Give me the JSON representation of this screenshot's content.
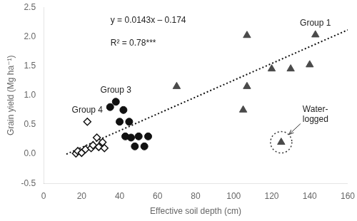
{
  "chart_data": {
    "type": "scatter",
    "xlabel": "Effective soil depth (cm)",
    "ylabel": "Grain yield (Mg ha⁻¹)",
    "xlim": [
      0,
      160
    ],
    "ylim": [
      -0.5,
      2.5
    ],
    "xticks": [
      0,
      20,
      40,
      60,
      80,
      100,
      120,
      140,
      160
    ],
    "yticks": [
      -0.5,
      {
        "value": 0,
        "label": "0.0"
      },
      0.5,
      {
        "value": 1,
        "label": "1.0"
      },
      1.5,
      {
        "value": 2,
        "label": "2.0"
      },
      2.5
    ],
    "grid": false,
    "annotations": [
      "y = 0.0143x – 0.174",
      "R² = 0.78***"
    ],
    "series": [
      {
        "name": "Group 1",
        "color": "#4a4a4a",
        "marker": "triangle",
        "x": [
          70,
          105,
          107,
          107,
          120,
          130,
          140,
          143
        ],
        "values": [
          1.15,
          0.75,
          1.15,
          2.02,
          1.45,
          1.45,
          1.52,
          2.03
        ]
      },
      {
        "name": "Group 3",
        "color": "#111111",
        "marker": "circle",
        "x": [
          35,
          38,
          40,
          42,
          43,
          45,
          46,
          48,
          50,
          53,
          55
        ],
        "values": [
          0.8,
          0.89,
          0.55,
          0.75,
          0.3,
          0.55,
          0.28,
          0.13,
          0.3,
          0.13,
          0.3
        ]
      },
      {
        "name": "Group 4",
        "color": "#111111",
        "marker": "diamond",
        "x": [
          17,
          18,
          20,
          22,
          23,
          25,
          26,
          28,
          29,
          31,
          32
        ],
        "values": [
          0.01,
          0.05,
          0.02,
          0.08,
          0.55,
          0.1,
          0.15,
          0.28,
          0.12,
          0.2,
          0.1
        ]
      },
      {
        "name": "Water-\nlogged",
        "color": "#4a4a4a",
        "marker": "triangle",
        "x": [
          125
        ],
        "values": [
          0.2
        ]
      },
      {
        "type": "line",
        "color": "#111111",
        "line_style": "dotted",
        "x": [
          12,
          160
        ],
        "values": [
          -0.0024,
          2.114
        ]
      }
    ]
  }
}
